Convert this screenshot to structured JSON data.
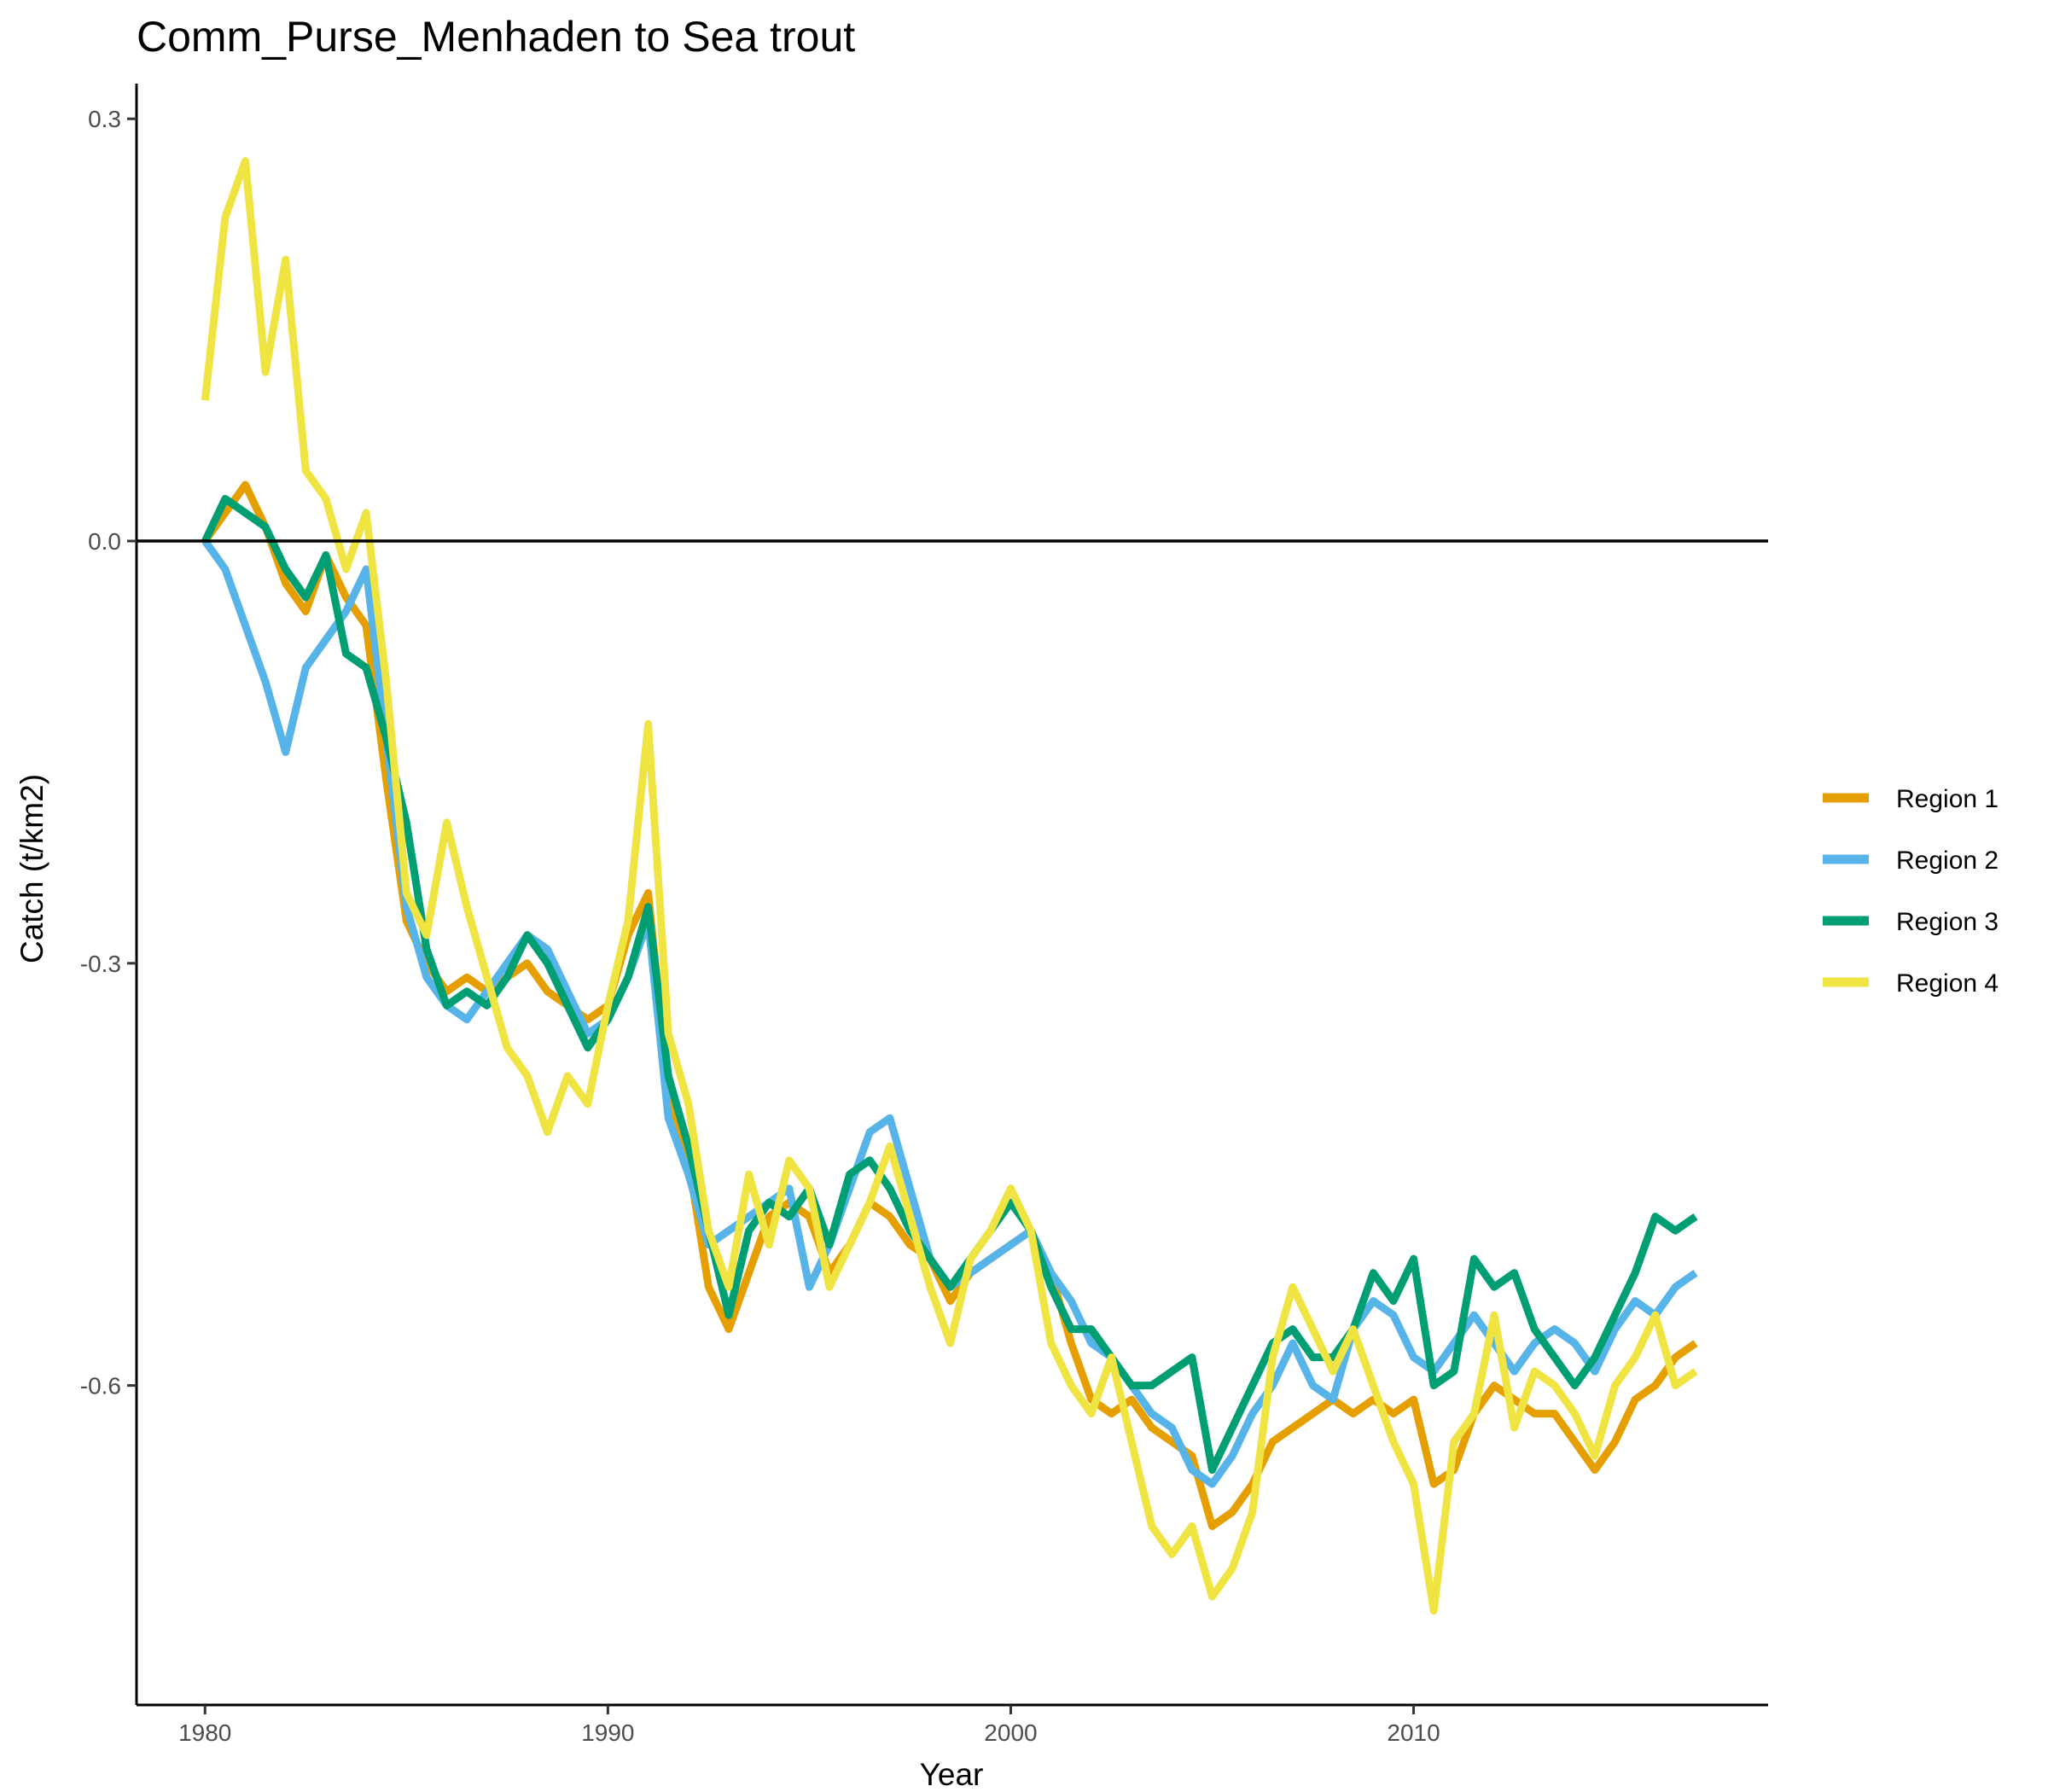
{
  "chart_data": {
    "type": "line",
    "title": "Comm_Purse_Menhaden to Sea trout",
    "xlabel": "Year",
    "ylabel": "Catch (t/km2)",
    "xlim": [
      1978.3,
      2018.8
    ],
    "ylim": [
      -0.827,
      0.325
    ],
    "x_ticks": [
      1980,
      1990,
      2000,
      2010
    ],
    "x_tick_labels": [
      "1980",
      "1990",
      "2000",
      "2010"
    ],
    "y_ticks": [
      0.3,
      0.0,
      -0.3,
      -0.6
    ],
    "y_tick_labels": [
      "0.3",
      "0.0",
      "-0.3",
      "-0.6"
    ],
    "hline": 0,
    "grid": false,
    "legend_position": "right",
    "series": [
      {
        "name": "Region 1",
        "color": "#E69F00",
        "x": [
          1980.0,
          1980.5,
          1981.0,
          1981.5,
          1982.0,
          1982.5,
          1983.0,
          1983.5,
          1984.0,
          1984.5,
          1985.0,
          1985.5,
          1986.0,
          1986.5,
          1987.0,
          1987.5,
          1988.0,
          1988.5,
          1989.0,
          1989.5,
          1990.0,
          1990.5,
          1991.0,
          1991.5,
          1992.0,
          1992.5,
          1993.0,
          1993.5,
          1994.0,
          1994.5,
          1995.0,
          1995.5,
          1996.0,
          1996.5,
          1997.0,
          1997.5,
          1998.0,
          1998.5,
          1999.0,
          1999.5,
          2000.0,
          2000.5,
          2001.0,
          2001.5,
          2002.0,
          2002.5,
          2003.0,
          2003.5,
          2004.0,
          2004.5,
          2005.0,
          2005.5,
          2006.0,
          2006.5,
          2007.0,
          2007.5,
          2008.0,
          2008.5,
          2009.0,
          2009.5,
          2010.0,
          2010.5,
          2011.0,
          2011.5,
          2012.0,
          2012.5,
          2013.0,
          2013.5,
          2014.0,
          2014.5,
          2015.0,
          2015.5,
          2016.0,
          2016.5,
          2017.0
        ],
        "y": [
          0.0,
          0.02,
          0.04,
          0.01,
          -0.03,
          -0.05,
          -0.01,
          -0.04,
          -0.06,
          -0.17,
          -0.27,
          -0.3,
          -0.32,
          -0.31,
          -0.32,
          -0.31,
          -0.3,
          -0.32,
          -0.33,
          -0.34,
          -0.33,
          -0.28,
          -0.25,
          -0.39,
          -0.44,
          -0.53,
          -0.56,
          -0.52,
          -0.48,
          -0.47,
          -0.48,
          -0.52,
          -0.5,
          -0.47,
          -0.48,
          -0.5,
          -0.51,
          -0.54,
          -0.52,
          -0.51,
          -0.5,
          -0.49,
          -0.52,
          -0.57,
          -0.61,
          -0.62,
          -0.61,
          -0.63,
          -0.64,
          -0.65,
          -0.7,
          -0.69,
          -0.67,
          -0.64,
          -0.63,
          -0.62,
          -0.61,
          -0.62,
          -0.61,
          -0.62,
          -0.61,
          -0.67,
          -0.66,
          -0.62,
          -0.6,
          -0.61,
          -0.62,
          -0.62,
          -0.64,
          -0.66,
          -0.64,
          -0.61,
          -0.6,
          -0.58,
          -0.57
        ]
      },
      {
        "name": "Region 2",
        "color": "#56B4E9",
        "x": [
          1980.0,
          1980.5,
          1981.0,
          1981.5,
          1982.0,
          1982.5,
          1983.0,
          1983.5,
          1984.0,
          1984.5,
          1985.0,
          1985.5,
          1986.0,
          1986.5,
          1987.0,
          1987.5,
          1988.0,
          1988.5,
          1989.0,
          1989.5,
          1990.0,
          1990.5,
          1991.0,
          1991.5,
          1992.0,
          1992.5,
          1993.0,
          1993.5,
          1994.0,
          1994.5,
          1995.0,
          1995.5,
          1996.0,
          1996.5,
          1997.0,
          1997.5,
          1998.0,
          1998.5,
          1999.0,
          1999.5,
          2000.0,
          2000.5,
          2001.0,
          2001.5,
          2002.0,
          2002.5,
          2003.0,
          2003.5,
          2004.0,
          2004.5,
          2005.0,
          2005.5,
          2006.0,
          2006.5,
          2007.0,
          2007.5,
          2008.0,
          2008.5,
          2009.0,
          2009.5,
          2010.0,
          2010.5,
          2011.0,
          2011.5,
          2012.0,
          2012.5,
          2013.0,
          2013.5,
          2014.0,
          2014.5,
          2015.0,
          2015.5,
          2016.0,
          2016.5,
          2017.0
        ],
        "y": [
          0.0,
          -0.02,
          -0.06,
          -0.1,
          -0.15,
          -0.09,
          -0.07,
          -0.05,
          -0.02,
          -0.14,
          -0.26,
          -0.31,
          -0.33,
          -0.34,
          -0.32,
          -0.3,
          -0.28,
          -0.29,
          -0.32,
          -0.35,
          -0.34,
          -0.31,
          -0.27,
          -0.41,
          -0.45,
          -0.5,
          -0.49,
          -0.48,
          -0.47,
          -0.46,
          -0.53,
          -0.5,
          -0.46,
          -0.42,
          -0.41,
          -0.46,
          -0.51,
          -0.53,
          -0.52,
          -0.51,
          -0.5,
          -0.49,
          -0.52,
          -0.54,
          -0.57,
          -0.58,
          -0.6,
          -0.62,
          -0.63,
          -0.66,
          -0.67,
          -0.65,
          -0.62,
          -0.6,
          -0.57,
          -0.6,
          -0.61,
          -0.56,
          -0.54,
          -0.55,
          -0.58,
          -0.59,
          -0.57,
          -0.55,
          -0.57,
          -0.59,
          -0.57,
          -0.56,
          -0.57,
          -0.59,
          -0.56,
          -0.54,
          -0.55,
          -0.53,
          -0.52
        ]
      },
      {
        "name": "Region 3",
        "color": "#009E73",
        "x": [
          1980.0,
          1980.5,
          1981.0,
          1981.5,
          1982.0,
          1982.5,
          1983.0,
          1983.5,
          1984.0,
          1984.5,
          1985.0,
          1985.5,
          1986.0,
          1986.5,
          1987.0,
          1987.5,
          1988.0,
          1988.5,
          1989.0,
          1989.5,
          1990.0,
          1990.5,
          1991.0,
          1991.5,
          1992.0,
          1992.5,
          1993.0,
          1993.5,
          1994.0,
          1994.5,
          1995.0,
          1995.5,
          1996.0,
          1996.5,
          1997.0,
          1997.5,
          1998.0,
          1998.5,
          1999.0,
          1999.5,
          2000.0,
          2000.5,
          2001.0,
          2001.5,
          2002.0,
          2002.5,
          2003.0,
          2003.5,
          2004.0,
          2004.5,
          2005.0,
          2005.5,
          2006.0,
          2006.5,
          2007.0,
          2007.5,
          2008.0,
          2008.5,
          2009.0,
          2009.5,
          2010.0,
          2010.5,
          2011.0,
          2011.5,
          2012.0,
          2012.5,
          2013.0,
          2013.5,
          2014.0,
          2014.5,
          2015.0,
          2015.5,
          2016.0,
          2016.5,
          2017.0
        ],
        "y": [
          0.0,
          0.03,
          0.02,
          0.01,
          -0.02,
          -0.04,
          -0.01,
          -0.08,
          -0.09,
          -0.14,
          -0.2,
          -0.29,
          -0.33,
          -0.32,
          -0.33,
          -0.31,
          -0.28,
          -0.3,
          -0.33,
          -0.36,
          -0.34,
          -0.31,
          -0.26,
          -0.38,
          -0.43,
          -0.49,
          -0.55,
          -0.49,
          -0.47,
          -0.48,
          -0.46,
          -0.5,
          -0.45,
          -0.44,
          -0.46,
          -0.49,
          -0.51,
          -0.53,
          -0.51,
          -0.49,
          -0.47,
          -0.49,
          -0.53,
          -0.56,
          -0.56,
          -0.58,
          -0.6,
          -0.6,
          -0.59,
          -0.58,
          -0.66,
          -0.63,
          -0.6,
          -0.57,
          -0.56,
          -0.58,
          -0.58,
          -0.56,
          -0.52,
          -0.54,
          -0.51,
          -0.6,
          -0.59,
          -0.51,
          -0.53,
          -0.52,
          -0.56,
          -0.58,
          -0.6,
          -0.58,
          -0.55,
          -0.52,
          -0.48,
          -0.49,
          -0.48
        ]
      },
      {
        "name": "Region 4",
        "color": "#F0E442",
        "x": [
          1980.0,
          1980.5,
          1981.0,
          1981.5,
          1982.0,
          1982.5,
          1983.0,
          1983.5,
          1984.0,
          1984.5,
          1985.0,
          1985.5,
          1986.0,
          1986.5,
          1987.0,
          1987.5,
          1988.0,
          1988.5,
          1989.0,
          1989.5,
          1990.0,
          1990.5,
          1991.0,
          1991.5,
          1992.0,
          1992.5,
          1993.0,
          1993.5,
          1994.0,
          1994.5,
          1995.0,
          1995.5,
          1996.0,
          1996.5,
          1997.0,
          1997.5,
          1998.0,
          1998.5,
          1999.0,
          1999.5,
          2000.0,
          2000.5,
          2001.0,
          2001.5,
          2002.0,
          2002.5,
          2003.0,
          2003.5,
          2004.0,
          2004.5,
          2005.0,
          2005.5,
          2006.0,
          2006.5,
          2007.0,
          2007.5,
          2008.0,
          2008.5,
          2009.0,
          2009.5,
          2010.0,
          2010.5,
          2011.0,
          2011.5,
          2012.0,
          2012.5,
          2013.0,
          2013.5,
          2014.0,
          2014.5,
          2015.0,
          2015.5,
          2016.0,
          2016.5,
          2017.0
        ],
        "y": [
          0.1,
          0.23,
          0.27,
          0.12,
          0.2,
          0.05,
          0.03,
          -0.02,
          0.02,
          -0.1,
          -0.25,
          -0.28,
          -0.2,
          -0.26,
          -0.31,
          -0.36,
          -0.38,
          -0.42,
          -0.38,
          -0.4,
          -0.33,
          -0.27,
          -0.13,
          -0.35,
          -0.4,
          -0.49,
          -0.53,
          -0.45,
          -0.5,
          -0.44,
          -0.46,
          -0.53,
          -0.5,
          -0.47,
          -0.43,
          -0.48,
          -0.53,
          -0.57,
          -0.51,
          -0.49,
          -0.46,
          -0.49,
          -0.57,
          -0.6,
          -0.62,
          -0.58,
          -0.64,
          -0.7,
          -0.72,
          -0.7,
          -0.75,
          -0.73,
          -0.69,
          -0.58,
          -0.53,
          -0.56,
          -0.59,
          -0.56,
          -0.6,
          -0.64,
          -0.67,
          -0.76,
          -0.64,
          -0.62,
          -0.55,
          -0.63,
          -0.59,
          -0.6,
          -0.62,
          -0.65,
          -0.6,
          -0.58,
          -0.55,
          -0.6,
          -0.59
        ]
      }
    ]
  }
}
